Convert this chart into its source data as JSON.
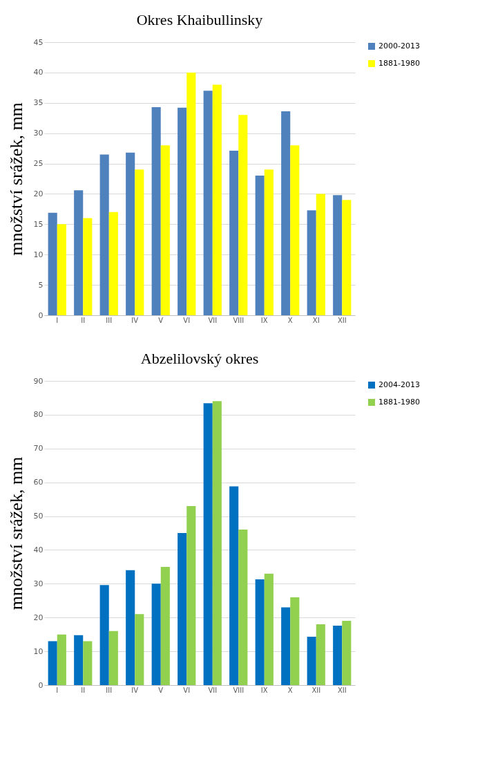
{
  "chart_data": [
    {
      "type": "bar",
      "title": "Okres Khaibullinsky",
      "ylabel": "množství srážek, mm",
      "categories": [
        "I",
        "II",
        "III",
        "IV",
        "V",
        "VI",
        "VII",
        "VIII",
        "IX",
        "X",
        "XI",
        "XII"
      ],
      "series": [
        {
          "name": "2000-2013",
          "color": "#4f81bd",
          "values": [
            16.9,
            20.6,
            26.5,
            26.8,
            34.3,
            34.2,
            37.0,
            27.1,
            23.0,
            33.6,
            17.3,
            19.8
          ]
        },
        {
          "name": "1881-1980",
          "color": "#ffff00",
          "values": [
            15,
            16,
            17,
            24,
            28,
            40,
            38,
            33,
            24,
            28,
            20,
            19
          ]
        }
      ],
      "ylim": [
        0,
        45
      ],
      "yticks": [
        0,
        5,
        10,
        15,
        20,
        25,
        30,
        35,
        40,
        45
      ],
      "grid": "y",
      "legend": "right"
    },
    {
      "type": "bar",
      "title": "Abzelilovský okres",
      "ylabel": "množství srážek, mm",
      "categories": [
        "I",
        "II",
        "III",
        "IV",
        "V",
        "VI",
        "VII",
        "VIII",
        "IX",
        "X",
        "XII",
        "XII"
      ],
      "series": [
        {
          "name": "2004-2013",
          "color": "#0070c0",
          "values": [
            13,
            14.8,
            29.6,
            34,
            30,
            45,
            83.4,
            58.8,
            31.3,
            23,
            14.3,
            17.6
          ]
        },
        {
          "name": "1881-1980",
          "color": "#92d050",
          "values": [
            15,
            13,
            16,
            21,
            35,
            53,
            84,
            46,
            33,
            26,
            18,
            19
          ]
        }
      ],
      "ylim": [
        0,
        90
      ],
      "yticks": [
        0,
        10,
        20,
        30,
        40,
        50,
        60,
        70,
        80,
        90
      ],
      "grid": "y",
      "legend": "right"
    }
  ]
}
